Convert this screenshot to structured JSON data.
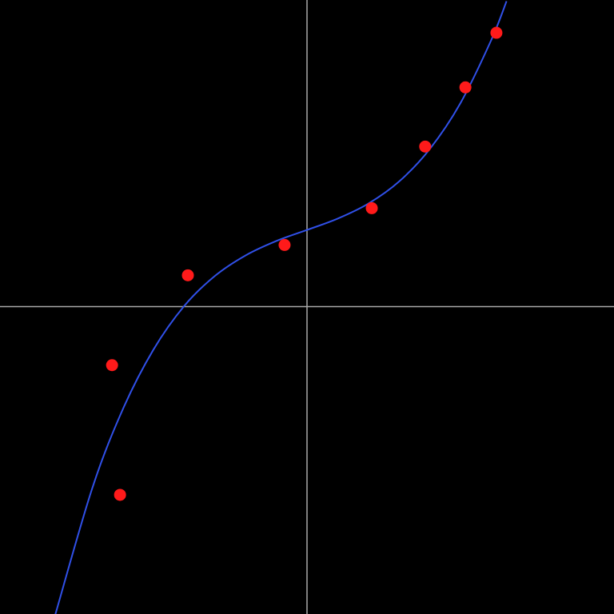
{
  "chart_data": {
    "type": "scatter",
    "xlim": [
      -1,
      1
    ],
    "ylim": [
      -1,
      1
    ],
    "series": [
      {
        "type": "line",
        "color": "#3050e8",
        "x": [
          -0.82,
          -0.7,
          -0.6,
          -0.5,
          -0.4,
          -0.3,
          -0.2,
          -0.1,
          0,
          0.1,
          0.2,
          0.3,
          0.4,
          0.5,
          0.6,
          0.65
        ],
        "values": [
          -1.005,
          -0.594,
          -0.335,
          -0.14,
          0.002,
          0.1,
          0.167,
          0.214,
          0.25,
          0.287,
          0.336,
          0.408,
          0.514,
          0.664,
          0.869,
          0.996
        ]
      },
      {
        "type": "scatter",
        "color": "#ff1a1a",
        "x": [
          -0.635,
          -0.609,
          -0.388,
          -0.073,
          0.211,
          0.385,
          0.516,
          0.617
        ],
        "values": [
          -0.191,
          -0.614,
          0.102,
          0.201,
          0.321,
          0.522,
          0.715,
          0.893
        ]
      }
    ]
  }
}
